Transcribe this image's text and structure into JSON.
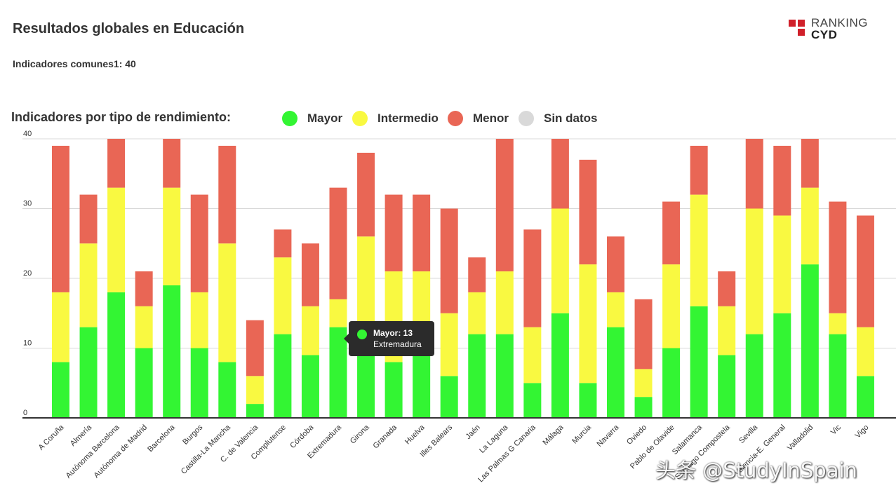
{
  "title": "Resultados globales en Educación",
  "subtitle": "Indicadores comunes1: 40",
  "logo": {
    "line1": "RANKING",
    "line2": "CYD"
  },
  "legend": {
    "title": "Indicadores por tipo de rendimiento:",
    "items": [
      {
        "label": "Mayor",
        "color": "#33f533"
      },
      {
        "label": "Intermedio",
        "color": "#f9f941"
      },
      {
        "label": "Menor",
        "color": "#e96655"
      },
      {
        "label": "Sin datos",
        "color": "#d9d9d9"
      }
    ]
  },
  "tooltip": {
    "line1": "Mayor: 13",
    "line2": "Extremadura"
  },
  "watermark": "头条 @StudyInSpain",
  "chart_data": {
    "type": "bar",
    "stacked": true,
    "ylim": [
      0,
      40
    ],
    "yticks": [
      0,
      10,
      20,
      30,
      40
    ],
    "categories": [
      "A Coruña",
      "Almería",
      "Autónoma Barcelona",
      "Autónoma de Madrid",
      "Barcelona",
      "Burgos",
      "Castilla-La Mancha",
      "C. de Valencia",
      "Complutense",
      "Córdoba",
      "Extremadura",
      "Girona",
      "Granada",
      "Huelva",
      "Illes Balears",
      "Jaén",
      "La Laguna",
      "Las Palmas G Canaria",
      "Málaga",
      "Murcia",
      "Navarra",
      "Oviedo",
      "Pablo de Olavide",
      "Salamanca",
      "Santiago Compostela",
      "Sevilla",
      "Valencia-E. General",
      "Valladolid",
      "Vic",
      "Vigo"
    ],
    "series": [
      {
        "name": "Mayor",
        "color": "#33f533",
        "values": [
          8,
          13,
          18,
          10,
          19,
          10,
          8,
          2,
          12,
          9,
          13,
          10,
          8,
          10,
          6,
          12,
          12,
          5,
          15,
          5,
          13,
          3,
          10,
          16,
          9,
          12,
          15,
          22,
          12,
          6
        ]
      },
      {
        "name": "Intermedio",
        "color": "#f9f941",
        "values": [
          10,
          12,
          15,
          6,
          14,
          8,
          17,
          4,
          11,
          7,
          4,
          16,
          13,
          11,
          9,
          6,
          9,
          8,
          15,
          17,
          5,
          4,
          12,
          16,
          7,
          18,
          14,
          11,
          3,
          7
        ]
      },
      {
        "name": "Menor",
        "color": "#e96655",
        "values": [
          21,
          7,
          7,
          5,
          7,
          14,
          14,
          8,
          4,
          9,
          16,
          12,
          11,
          11,
          15,
          5,
          19,
          14,
          10,
          15,
          8,
          10,
          9,
          7,
          5,
          10,
          10,
          7,
          16,
          16
        ]
      }
    ]
  }
}
